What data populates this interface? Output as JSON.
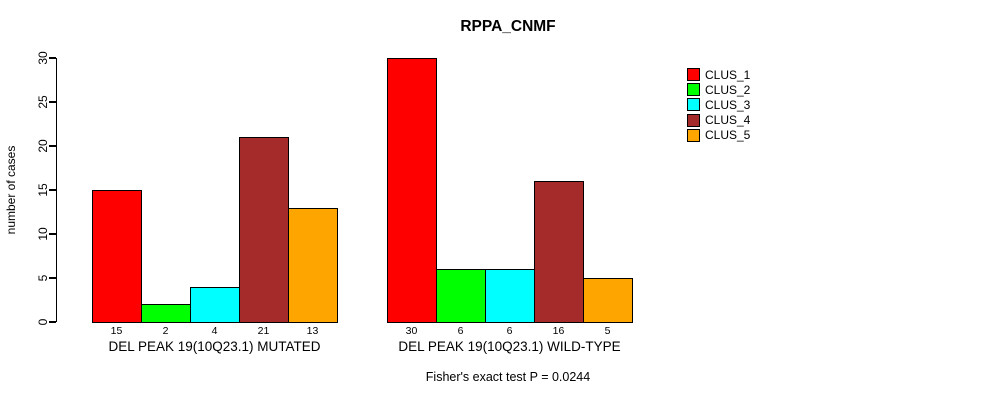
{
  "chart_data": {
    "type": "bar",
    "title": "RPPA_CNMF",
    "ylabel": "number of cases",
    "ylim": [
      0,
      30
    ],
    "yticks": [
      0,
      5,
      10,
      15,
      20,
      25,
      30
    ],
    "grid": false,
    "legend_position": "right",
    "bar_value_labels": true,
    "series": [
      {
        "name": "CLUS_1",
        "color": "#FF0000"
      },
      {
        "name": "CLUS_2",
        "color": "#00FF00"
      },
      {
        "name": "CLUS_3",
        "color": "#00FFFF"
      },
      {
        "name": "CLUS_4",
        "color": "#A52A2A"
      },
      {
        "name": "CLUS_5",
        "color": "#FFA500"
      }
    ],
    "groups": [
      {
        "label": "DEL PEAK 19(10Q23.1) MUTATED",
        "values": [
          15,
          2,
          4,
          21,
          13
        ]
      },
      {
        "label": "DEL PEAK 19(10Q23.1) WILD-TYPE",
        "values": [
          30,
          6,
          6,
          16,
          5
        ]
      }
    ],
    "annotation": "Fisher's exact test P = 0.0244"
  }
}
